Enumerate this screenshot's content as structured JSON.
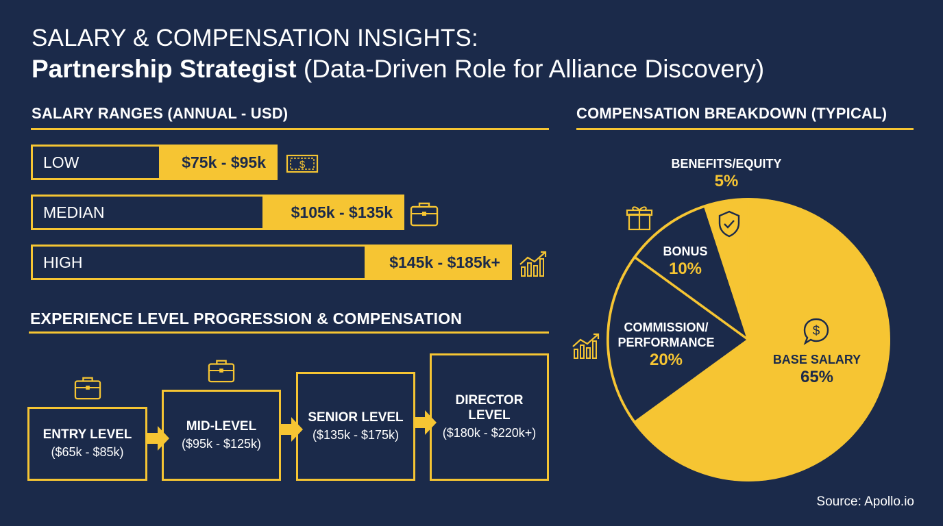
{
  "title": {
    "line1": "SALARY & COMPENSATION INSIGHTS:",
    "line2_bold": "Partnership Strategist",
    "line2_rest": " (Data-Driven Role for Alliance Discovery)"
  },
  "salary_section_title": "SALARY RANGES (ANNUAL - USD)",
  "experience_section_title": "EXPERIENCE LEVEL PROGRESSION & COMPENSATION",
  "breakdown_section_title": "COMPENSATION BREAKDOWN (TYPICAL)",
  "salary_ranges": [
    {
      "label": "LOW",
      "range": "$75k - $95k",
      "icon": "money-icon"
    },
    {
      "label": "MEDIAN",
      "range": "$105k - $135k",
      "icon": "briefcase-icon"
    },
    {
      "label": "HIGH",
      "range": "$145k - $185k+",
      "icon": "growth-chart-icon"
    }
  ],
  "levels": [
    {
      "name": "ENTRY LEVEL",
      "range": "($65k - $85k)"
    },
    {
      "name": "MID-LEVEL",
      "range": "($95k - $125k)"
    },
    {
      "name": "SENIOR LEVEL",
      "range": "($135k - $175k)"
    },
    {
      "name": "DIRECTOR LEVEL",
      "range": "($180k - $220k+)"
    }
  ],
  "chart_data": {
    "type": "pie",
    "title": "COMPENSATION BREAKDOWN (TYPICAL)",
    "categories": [
      "BASE SALARY",
      "COMMISSION/ PERFORMANCE",
      "BONUS",
      "BENEFITS/EQUITY"
    ],
    "values": [
      65,
      20,
      10,
      5
    ],
    "labels": [
      "65%",
      "20%",
      "10%",
      "5%"
    ],
    "colors": {
      "accent": "#f6c533",
      "background": "#1b2a4a"
    }
  },
  "source": "Source: Apollo.io"
}
